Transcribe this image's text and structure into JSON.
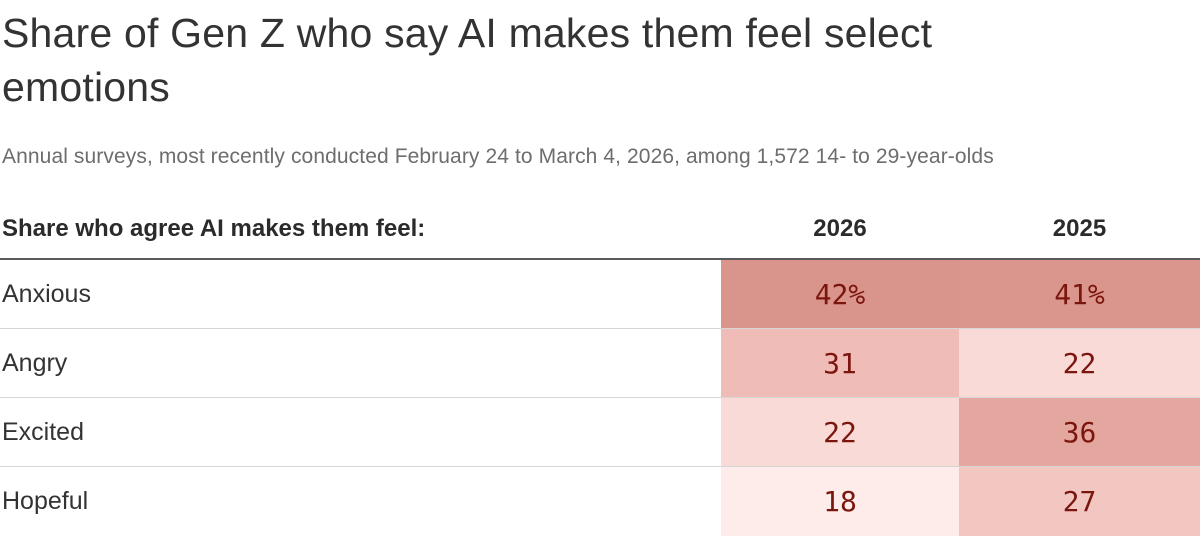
{
  "title": "Share of Gen Z who say AI makes them feel select emotions",
  "subtitle": "Annual surveys, most recently conducted February 24 to March 4, 2026, among 1,572 14- to 29-year-olds",
  "table": {
    "header_label": "Share who agree AI makes them feel:",
    "columns": [
      "2026",
      "2025"
    ],
    "rows": [
      {
        "label": "Anxious",
        "values": [
          "42%",
          "41%"
        ],
        "colors": [
          "#d9948b",
          "#da968d"
        ]
      },
      {
        "label": "Angry",
        "values": [
          "31",
          "22"
        ],
        "colors": [
          "#f0bcb7",
          "#f9dad6"
        ]
      },
      {
        "label": "Excited",
        "values": [
          "22",
          "36"
        ],
        "colors": [
          "#f9dad6",
          "#e4a79f"
        ]
      },
      {
        "label": "Hopeful",
        "values": [
          "18",
          "27"
        ],
        "colors": [
          "#fdecea",
          "#f2c6c1"
        ]
      }
    ],
    "value_text_color": "#7b160e"
  },
  "chart_data": {
    "type": "table",
    "title": "Share of Gen Z who say AI makes them feel select emotions",
    "subtitle": "Annual surveys, most recently conducted February 24 to March 4, 2026, among 1,572 14- to 29-year-olds",
    "row_header": "Share who agree AI makes them feel:",
    "categories": [
      "Anxious",
      "Angry",
      "Excited",
      "Hopeful"
    ],
    "series": [
      {
        "name": "2026",
        "values": [
          42,
          31,
          22,
          18
        ]
      },
      {
        "name": "2025",
        "values": [
          41,
          22,
          36,
          27
        ]
      }
    ],
    "unit": "percent",
    "style": "heatmap-shaded cells",
    "color_scale": {
      "low_value_color": "#fdecea",
      "high_value_color": "#d9948b"
    }
  }
}
